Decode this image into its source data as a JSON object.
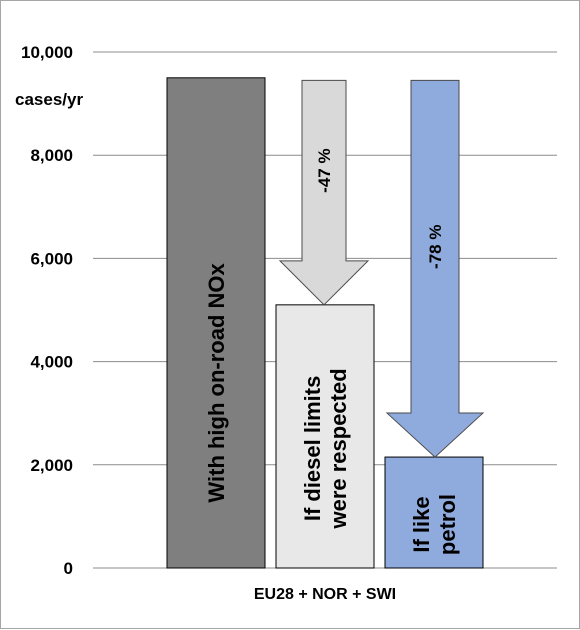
{
  "chart_data": {
    "type": "bar",
    "unit_label": "cases/yr",
    "x_category": "EU28 + NOR + SWI",
    "ylim": [
      0,
      10000
    ],
    "y_ticks": [
      "0",
      "2,000",
      "4,000",
      "6,000",
      "8,000",
      "10,000"
    ],
    "y_tick_values": [
      0,
      2000,
      4000,
      6000,
      8000,
      10000
    ],
    "grid": true,
    "bars": [
      {
        "label": "With high on-road NOx",
        "value": 9500,
        "color": "#7f7f7f",
        "label_lines": [
          "With high on-road NOx"
        ]
      },
      {
        "label": "If diesel limits were respected",
        "value": 5100,
        "color": "#e8e8e8",
        "label_lines": [
          "If diesel limits",
          "were respected"
        ]
      },
      {
        "label": "If like petrol",
        "value": 2150,
        "color": "#8faadc",
        "label_lines": [
          "If like",
          "petrol"
        ]
      }
    ],
    "arrows": [
      {
        "label": "-47 %",
        "from": 9450,
        "to": 5100,
        "color": "#d9d9d9"
      },
      {
        "label": "-78 %",
        "from": 9450,
        "to": 2150,
        "color": "#8faadc"
      }
    ]
  }
}
